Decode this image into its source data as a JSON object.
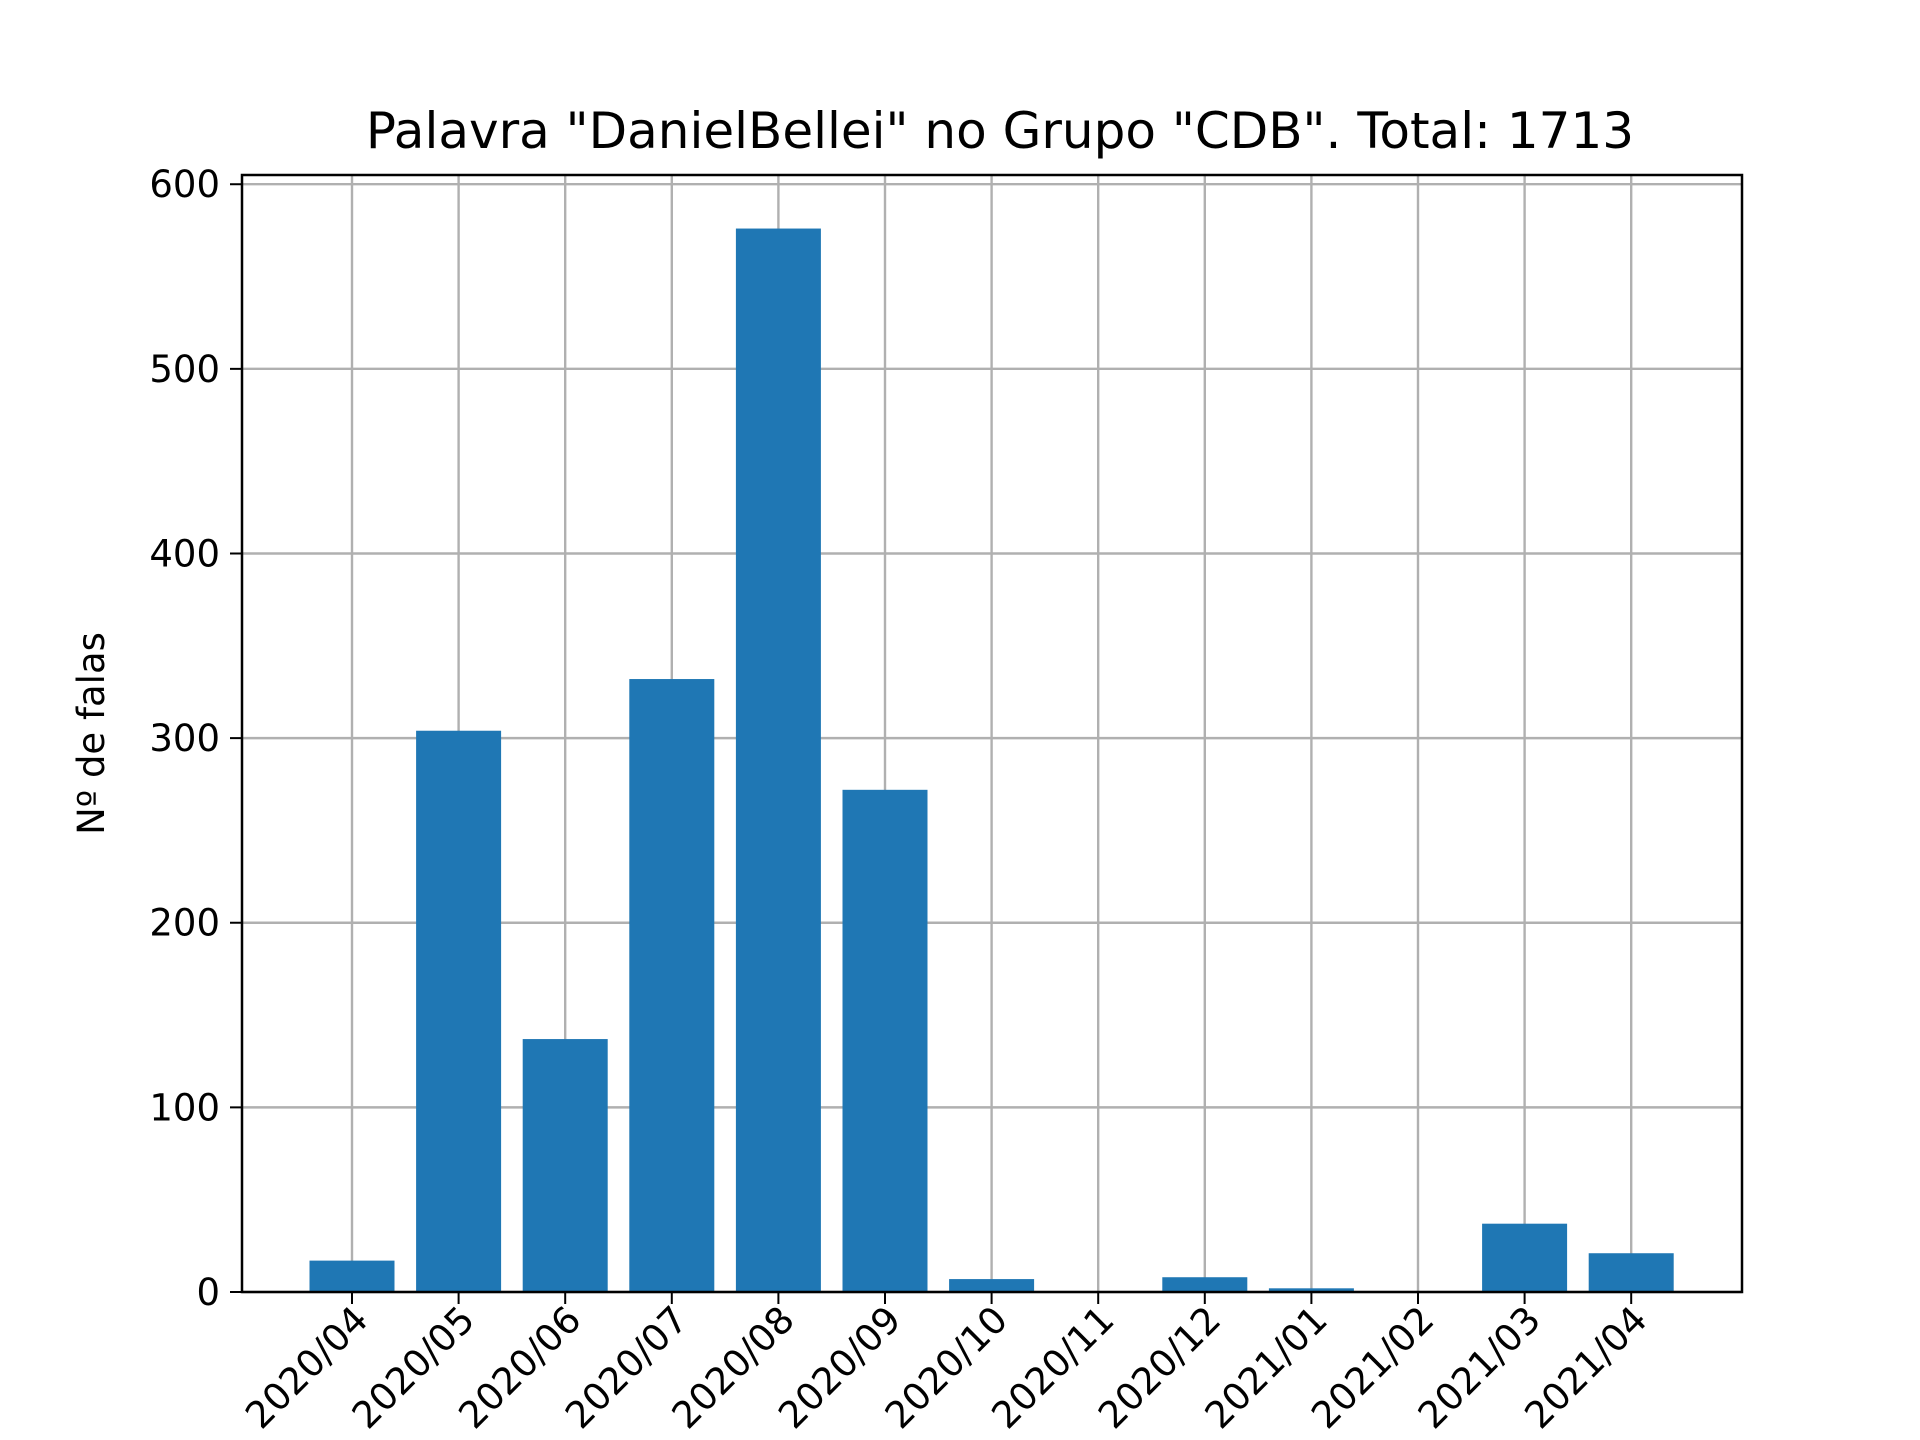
{
  "chart_data": {
    "type": "bar",
    "title": "Palavra \"DanielBellei\" no Grupo \"CDB\". Total: 1713",
    "xlabel": "",
    "ylabel": "Nº de falas",
    "categories": [
      "2020/04",
      "2020/05",
      "2020/06",
      "2020/07",
      "2020/08",
      "2020/09",
      "2020/10",
      "2020/11",
      "2020/12",
      "2021/01",
      "2021/02",
      "2021/03",
      "2021/04"
    ],
    "values": [
      17,
      304,
      137,
      332,
      576,
      272,
      7,
      0,
      8,
      2,
      0,
      37,
      21
    ],
    "ylim": [
      0,
      605
    ],
    "yticks": [
      0,
      100,
      200,
      300,
      400,
      500,
      600
    ],
    "grid": true,
    "bar_color": "#1f77b4",
    "grid_color": "#b0b0b0"
  }
}
